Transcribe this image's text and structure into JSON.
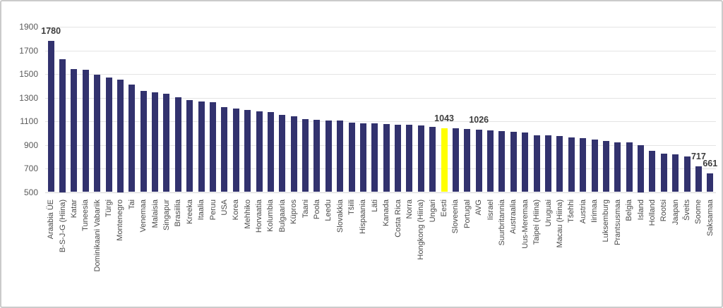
{
  "chart_data": {
    "type": "bar",
    "title": "",
    "xlabel": "",
    "ylabel": "",
    "categories": [
      "Araabia ÜE",
      "B-S-J-G (Hiina)",
      "Katar",
      "Tuneesia",
      "Dominikaani Vabariik",
      "Türgi",
      "Montenegro",
      "Tai",
      "Venemaa",
      "Malaisia",
      "Singapur",
      "Brasiilia",
      "Kreeka",
      "Itaalia",
      "Peruu",
      "USA",
      "Korea",
      "Mehhiko",
      "Horvaatia",
      "Kolumbia",
      "Bulgaaria",
      "Küpros",
      "Taani",
      "Poola",
      "Leedu",
      "Slovakkia",
      "Tšiili",
      "Hispaania",
      "Läti",
      "Kanada",
      "Costa Rica",
      "Norra",
      "Hongkong (Hiina)",
      "Ungari",
      "Eesti",
      "Sloveenia",
      "Portugal",
      "AVG",
      "Iisrael",
      "Suurbritannia",
      "Austraalia",
      "Uus-Meremaa",
      "Taipei (Hiina)",
      "Uruguai",
      "Macau (Hiina)",
      "Tšehhi",
      "Austria",
      "Iirimaa",
      "Luksemburg",
      "Prantsusmaa",
      "Belgia",
      "Island",
      "Holland",
      "Rootsi",
      "Jaapan",
      "Šveits",
      "Soome",
      "Saksamaa"
    ],
    "values": [
      1780,
      1625,
      1540,
      1535,
      1495,
      1470,
      1450,
      1410,
      1355,
      1345,
      1330,
      1305,
      1280,
      1270,
      1260,
      1220,
      1210,
      1197,
      1183,
      1176,
      1155,
      1142,
      1120,
      1112,
      1104,
      1103,
      1088,
      1081,
      1080,
      1078,
      1070,
      1068,
      1063,
      1052,
      1043,
      1038,
      1033,
      1026,
      1020,
      1016,
      1010,
      1002,
      983,
      980,
      972,
      962,
      955,
      945,
      933,
      923,
      920,
      900,
      852,
      823,
      817,
      799,
      717,
      661
    ],
    "highlight_category": "Eesti",
    "labeled_categories": [
      "Araabia ÜE",
      "Eesti",
      "AVG",
      "Soome",
      "Saksamaa"
    ],
    "data_labels": {
      "Araabia ÜE": "1780",
      "Eesti": "1043",
      "AVG": "1026",
      "Soome": "717",
      "Saksamaa": "661"
    },
    "ylim": [
      500,
      1900
    ],
    "yticks": [
      500,
      700,
      900,
      1100,
      1300,
      1500,
      1700,
      1900
    ],
    "grid": true,
    "legend": false,
    "bar_color": "#32326E",
    "highlight_color": "#FFFF00"
  },
  "colors": {
    "axis_text": "#595959",
    "x_label_text": "#4a4a4a",
    "data_label_text": "#3d3d3d",
    "gridline": "#e4e4e4",
    "frame_border": "#cbcbcb",
    "background": "#ffffff"
  }
}
